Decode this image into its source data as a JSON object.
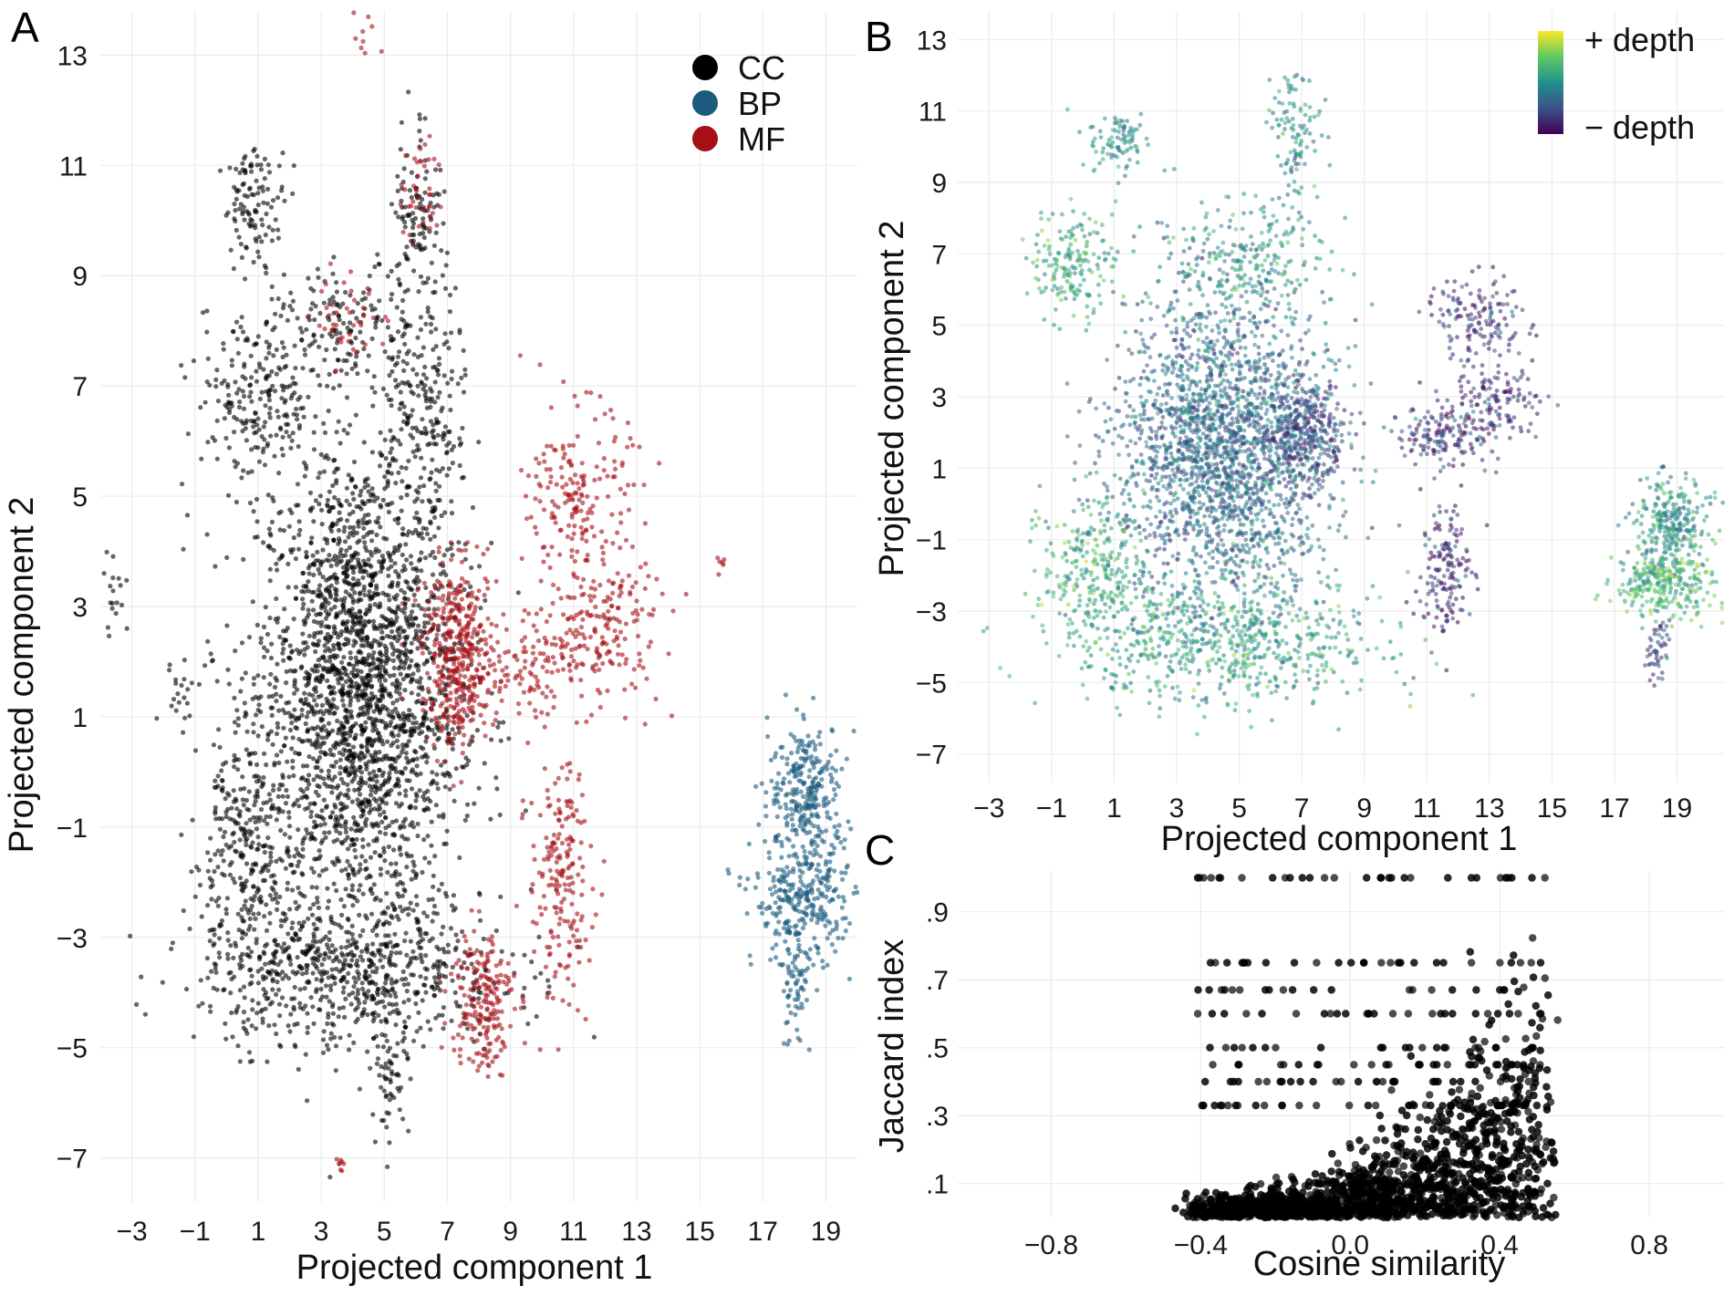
{
  "colors": {
    "CC": "#000000",
    "BP": "#1b5c7e",
    "MF": "#a50f15",
    "depth_high": "#fde725",
    "depth_low": "#440154",
    "grid": "#ebebeb"
  },
  "chart_data": [
    {
      "panel": "A",
      "type": "scatter",
      "xlabel": "Projected component 1",
      "ylabel": "Projected component 2",
      "xlim": [
        -4,
        20
      ],
      "ylim": [
        -7.8,
        13.8
      ],
      "xticks": [
        -3,
        -1,
        1,
        3,
        5,
        7,
        9,
        11,
        13,
        15,
        17,
        19
      ],
      "yticks": [
        -7,
        -5,
        -3,
        -1,
        1,
        3,
        5,
        7,
        9,
        11,
        13
      ],
      "xtick_labels": [
        "−3",
        "−1",
        "1",
        "3",
        "5",
        "7",
        "9",
        "11",
        "13",
        "15",
        "17",
        "19"
      ],
      "ytick_labels": [
        "−7",
        "−5",
        "−3",
        "−1",
        "1",
        "3",
        "5",
        "7",
        "9",
        "11",
        "13"
      ],
      "grid": true,
      "legend": {
        "placement": "top-right",
        "entries": [
          "CC",
          "BP",
          "MF"
        ]
      },
      "series": [
        {
          "name": "CC",
          "clusters": [
            {
              "cx": 4.2,
              "cy": 1.5,
              "sx": 1.6,
              "sy": 2.2,
              "n": 2400
            },
            {
              "cx": 4.0,
              "cy": -3.6,
              "sx": 2.4,
              "sy": 0.7,
              "n": 700
            },
            {
              "cx": 1.0,
              "cy": 6.8,
              "sx": 1.0,
              "sy": 0.8,
              "n": 220
            },
            {
              "cx": 6.2,
              "cy": 6.3,
              "sx": 0.7,
              "sy": 1.3,
              "n": 220
            },
            {
              "cx": 4.0,
              "cy": 8.1,
              "sx": 1.2,
              "sy": 0.5,
              "n": 150
            },
            {
              "cx": 0.9,
              "cy": 10.3,
              "sx": 0.5,
              "sy": 0.5,
              "n": 110
            },
            {
              "cx": 6.1,
              "cy": 10.2,
              "sx": 0.4,
              "sy": 0.9,
              "n": 110
            },
            {
              "cx": 0.5,
              "cy": -1.5,
              "sx": 0.8,
              "sy": 1.2,
              "n": 300
            },
            {
              "cx": 5.2,
              "cy": -5.5,
              "sx": 0.3,
              "sy": 0.5,
              "n": 60
            },
            {
              "cx": -3.5,
              "cy": 3.2,
              "sx": 0.3,
              "sy": 0.4,
              "n": 20
            },
            {
              "cx": -1.5,
              "cy": 1.5,
              "sx": 0.3,
              "sy": 0.3,
              "n": 20
            }
          ]
        },
        {
          "name": "BP",
          "clusters": [
            {
              "cx": 18.4,
              "cy": -0.3,
              "sx": 0.6,
              "sy": 0.6,
              "n": 260
            },
            {
              "cx": 18.3,
              "cy": -2.3,
              "sx": 0.8,
              "sy": 0.6,
              "n": 320
            },
            {
              "cx": 18.0,
              "cy": -4.0,
              "sx": 0.2,
              "sy": 0.5,
              "n": 60
            }
          ]
        },
        {
          "name": "MF",
          "clusters": [
            {
              "cx": 7.4,
              "cy": 2.1,
              "sx": 0.6,
              "sy": 0.8,
              "n": 420
            },
            {
              "cx": 8.1,
              "cy": -4.1,
              "sx": 0.5,
              "sy": 0.7,
              "n": 200
            },
            {
              "cx": 11.2,
              "cy": 5.0,
              "sx": 0.8,
              "sy": 0.8,
              "n": 180
            },
            {
              "cx": 11.8,
              "cy": 2.6,
              "sx": 1.0,
              "sy": 0.7,
              "n": 200
            },
            {
              "cx": 10.6,
              "cy": -2.0,
              "sx": 0.5,
              "sy": 1.1,
              "n": 190
            },
            {
              "cx": 9.6,
              "cy": 1.9,
              "sx": 0.6,
              "sy": 0.4,
              "n": 80
            },
            {
              "cx": 6.2,
              "cy": 10.5,
              "sx": 0.3,
              "sy": 0.6,
              "n": 40
            },
            {
              "cx": 4.0,
              "cy": 8.3,
              "sx": 0.6,
              "sy": 0.4,
              "n": 40
            },
            {
              "cx": 3.6,
              "cy": -7.1,
              "sx": 0.1,
              "sy": 0.1,
              "n": 8
            },
            {
              "cx": 4.5,
              "cy": 13.3,
              "sx": 0.3,
              "sy": 0.3,
              "n": 10
            },
            {
              "cx": 15.6,
              "cy": 3.8,
              "sx": 0.1,
              "sy": 0.1,
              "n": 6
            }
          ]
        }
      ]
    },
    {
      "panel": "B",
      "type": "scatter",
      "xlabel": "Projected component 1",
      "ylabel": "Projected component 2",
      "xlim": [
        -4,
        20.5
      ],
      "ylim": [
        -7.8,
        13.8
      ],
      "xticks": [
        -3,
        -1,
        1,
        3,
        5,
        7,
        9,
        11,
        13,
        15,
        17,
        19
      ],
      "yticks": [
        -7,
        -5,
        -3,
        -1,
        1,
        3,
        5,
        7,
        9,
        11,
        13
      ],
      "xtick_labels": [
        "−3",
        "−1",
        "1",
        "3",
        "5",
        "7",
        "9",
        "11",
        "13",
        "15",
        "17",
        "19"
      ],
      "ytick_labels": [
        "−7",
        "−5",
        "−3",
        "−1",
        "1",
        "3",
        "5",
        "7",
        "9",
        "11",
        "13"
      ],
      "grid": true,
      "colorbar": {
        "placement": "top-right",
        "high_label": "+ depth",
        "low_label": "− depth"
      },
      "clusters": [
        {
          "cx": 4.5,
          "cy": 1.5,
          "sx": 1.7,
          "sy": 2.1,
          "n": 2200,
          "depth": 0.35
        },
        {
          "cx": 7.1,
          "cy": 2.0,
          "sx": 0.6,
          "sy": 0.7,
          "n": 300,
          "depth": 0.22
        },
        {
          "cx": 4.5,
          "cy": -3.8,
          "sx": 2.5,
          "sy": 0.9,
          "n": 700,
          "depth": 0.55
        },
        {
          "cx": 0.3,
          "cy": -1.8,
          "sx": 0.8,
          "sy": 1.0,
          "n": 250,
          "depth": 0.6
        },
        {
          "cx": -0.3,
          "cy": 6.8,
          "sx": 0.7,
          "sy": 0.7,
          "n": 180,
          "depth": 0.6
        },
        {
          "cx": 5.0,
          "cy": 6.8,
          "sx": 1.4,
          "sy": 0.9,
          "n": 250,
          "depth": 0.5
        },
        {
          "cx": 1.2,
          "cy": 10.2,
          "sx": 0.5,
          "sy": 0.4,
          "n": 90,
          "depth": 0.5
        },
        {
          "cx": 6.8,
          "cy": 10.3,
          "sx": 0.4,
          "sy": 1.0,
          "n": 110,
          "depth": 0.5
        },
        {
          "cx": 11.4,
          "cy": 1.9,
          "sx": 0.8,
          "sy": 0.4,
          "n": 150,
          "depth": 0.15
        },
        {
          "cx": 12.6,
          "cy": 5.2,
          "sx": 0.8,
          "sy": 0.6,
          "n": 150,
          "depth": 0.15
        },
        {
          "cx": 13.2,
          "cy": 2.8,
          "sx": 0.8,
          "sy": 0.5,
          "n": 140,
          "depth": 0.15
        },
        {
          "cx": 11.6,
          "cy": -1.8,
          "sx": 0.4,
          "sy": 1.0,
          "n": 160,
          "depth": 0.12
        },
        {
          "cx": 18.8,
          "cy": -0.5,
          "sx": 0.6,
          "sy": 0.6,
          "n": 250,
          "depth": 0.5
        },
        {
          "cx": 18.6,
          "cy": -2.2,
          "sx": 0.8,
          "sy": 0.5,
          "n": 300,
          "depth": 0.65
        },
        {
          "cx": 18.4,
          "cy": -4.0,
          "sx": 0.2,
          "sy": 0.4,
          "n": 50,
          "depth": 0.2
        }
      ]
    },
    {
      "panel": "C",
      "type": "scatter",
      "xlabel": "Cosine similarity",
      "ylabel": "Jaccard index",
      "xlim": [
        -1.05,
        1.0
      ],
      "ylim": [
        0.0,
        1.02
      ],
      "xticks": [
        -0.8,
        -0.4,
        0.0,
        0.4,
        0.8
      ],
      "yticks": [
        0.1,
        0.3,
        0.5,
        0.7,
        0.9
      ],
      "xtick_labels": [
        "−0.8",
        "−0.4",
        "0.0",
        "0.4",
        "0.8"
      ],
      "ytick_labels": [
        ".1",
        ".3",
        ".5",
        ".7",
        ".9"
      ],
      "grid": true,
      "trend": {
        "x_min": -0.42,
        "x_max": 0.72,
        "y_floor": 0.0,
        "y_top": 1.0
      },
      "bands": [
        0.33,
        0.4,
        0.45,
        0.5,
        0.6,
        0.67,
        0.75,
        1.0
      ],
      "n_points": 4500
    }
  ],
  "panels": {
    "A": {
      "label": "A"
    },
    "B": {
      "label": "B"
    },
    "C": {
      "label": "C"
    }
  }
}
